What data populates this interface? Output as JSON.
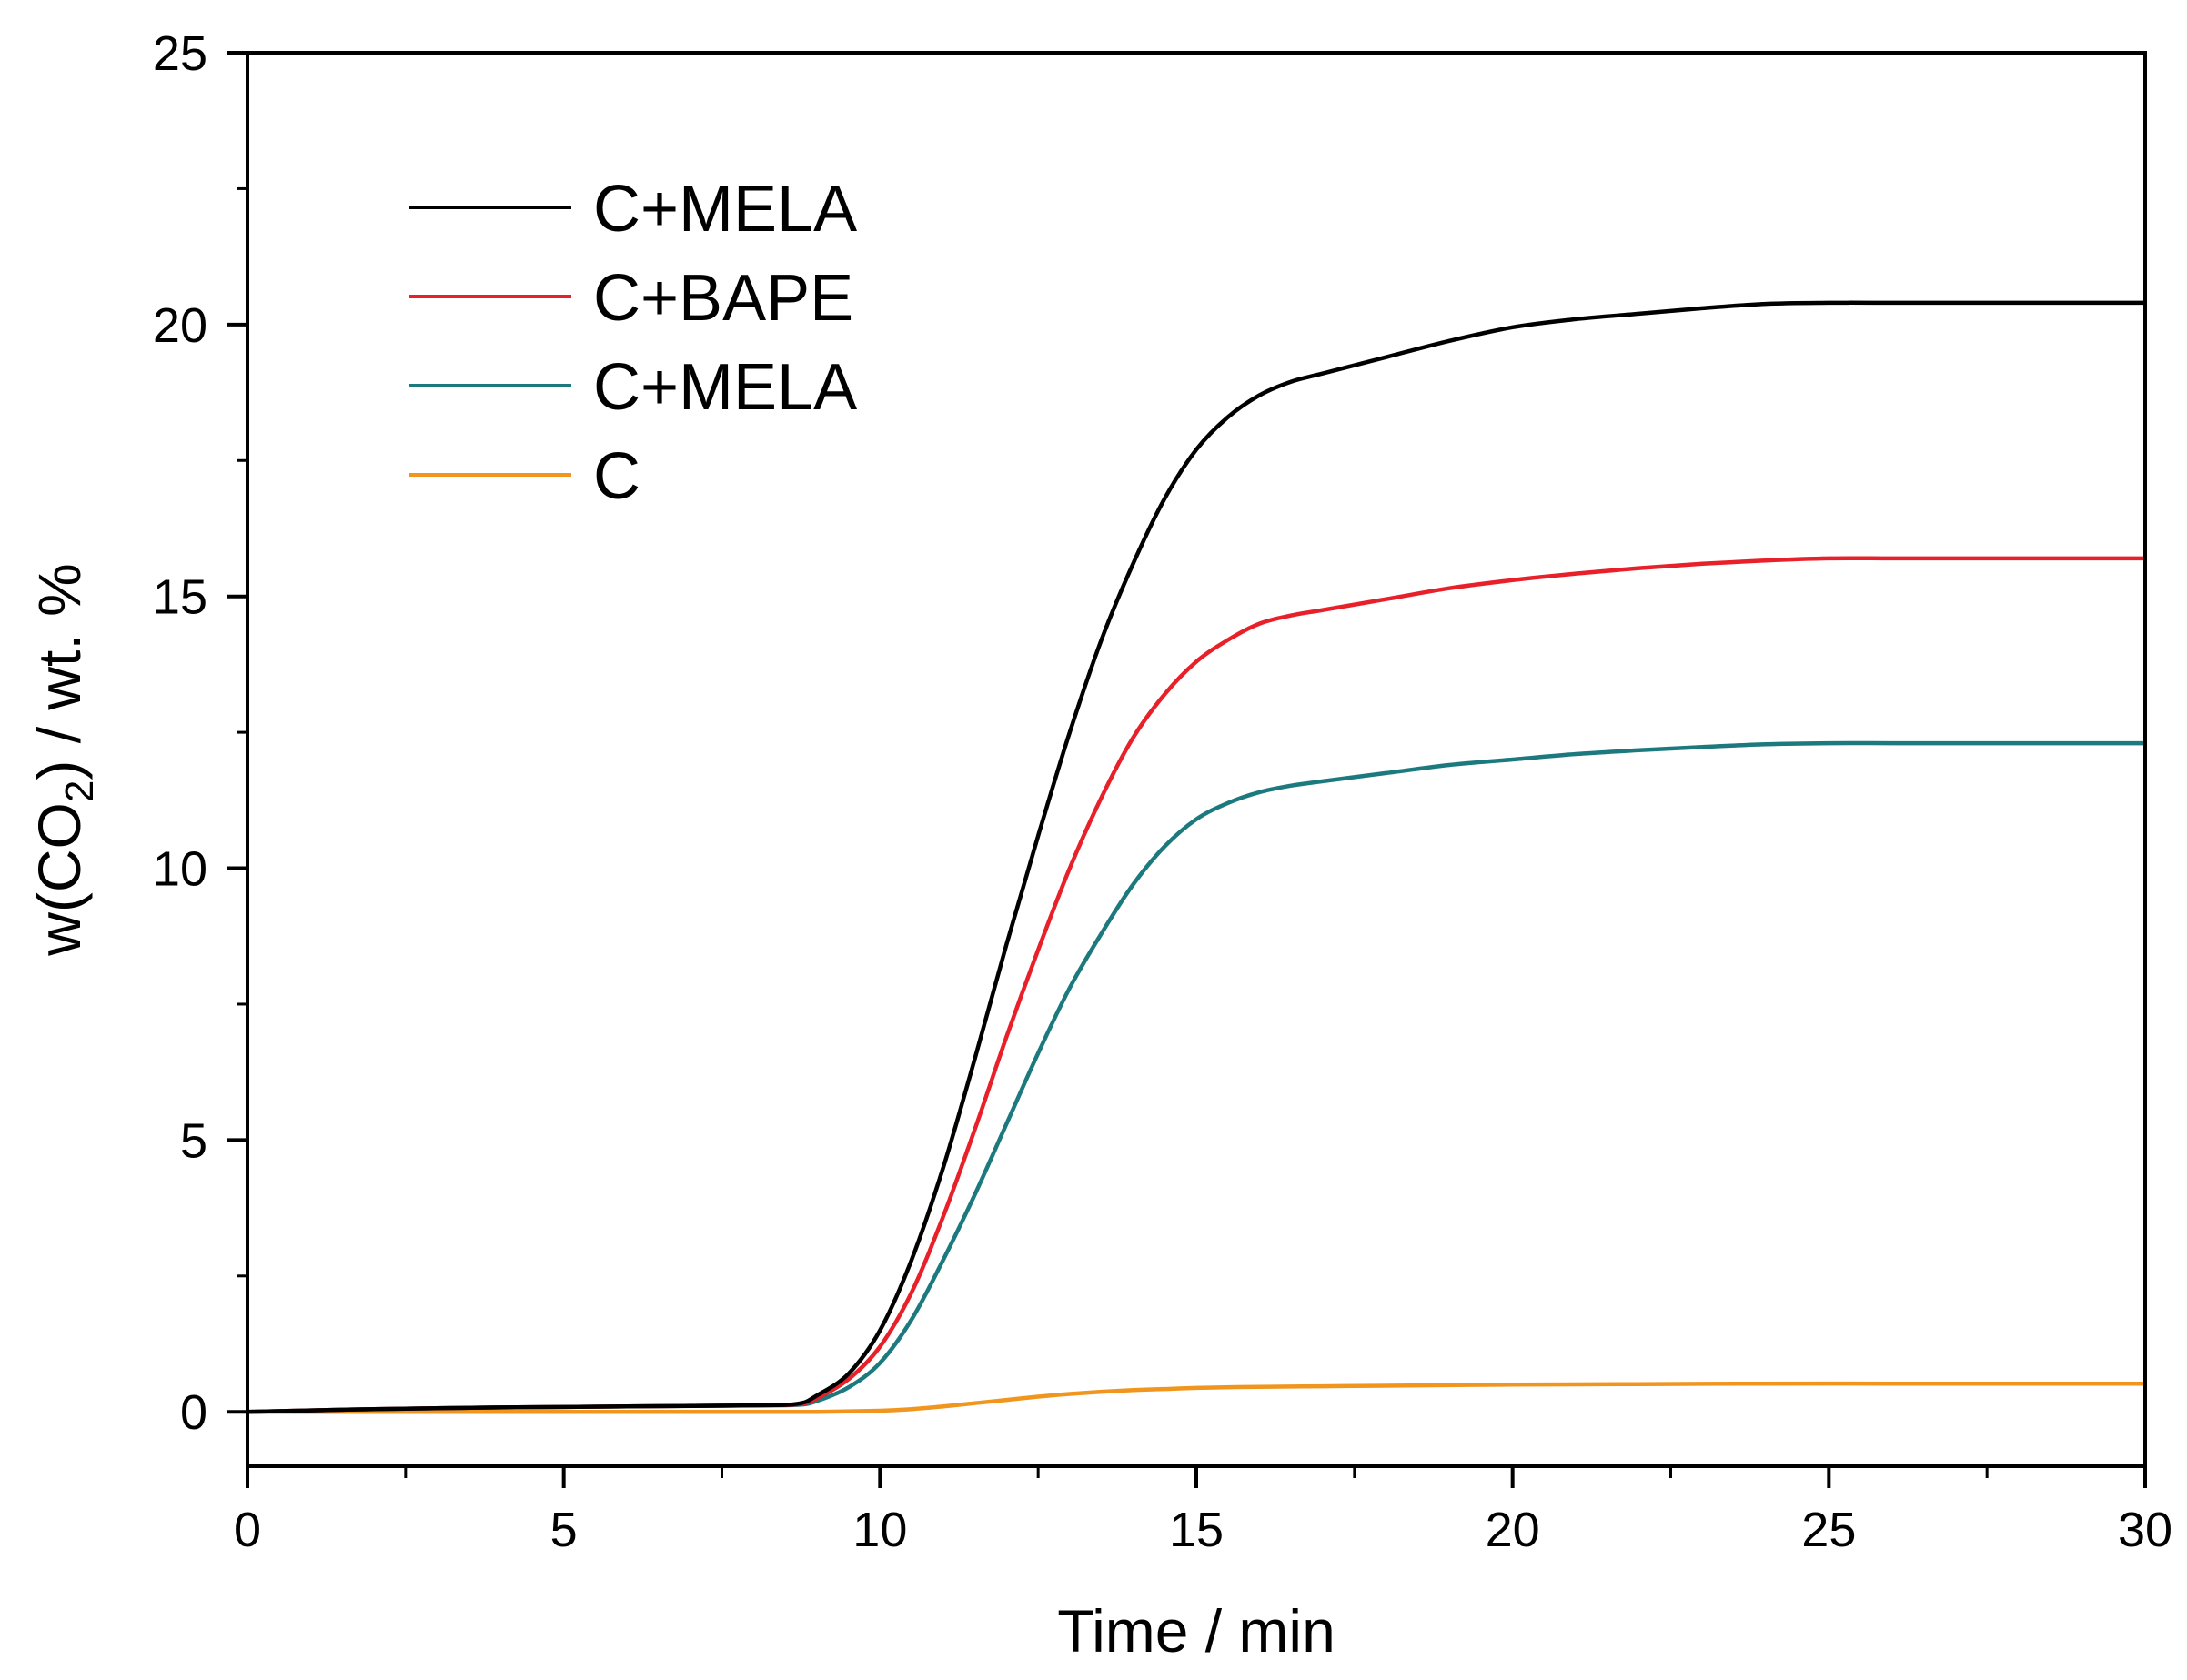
{
  "chart_data": {
    "type": "line",
    "title": "",
    "xlabel": "Time / min",
    "ylabel": {
      "prefix": "w(CO",
      "subscript": "2",
      "suffix": ") / wt. %"
    },
    "xlim": [
      0,
      30
    ],
    "ylim": [
      -1,
      25
    ],
    "xticks": [
      0,
      5,
      10,
      15,
      20,
      25,
      30
    ],
    "yticks": [
      0,
      5,
      10,
      15,
      20,
      25
    ],
    "grid": false,
    "legend_position": "top-left",
    "series": [
      {
        "name": "C+MELA",
        "color": "#000000",
        "x": [
          0,
          2,
          4,
          6,
          8,
          8.7,
          9,
          9.5,
          10,
          10.5,
          11,
          11.5,
          12,
          12.5,
          13,
          13.5,
          14,
          14.5,
          15,
          15.5,
          16,
          16.5,
          17,
          18,
          19,
          20,
          21,
          22,
          23,
          24,
          25,
          26,
          27,
          28,
          29,
          30
        ],
        "y": [
          0,
          0.05,
          0.08,
          0.1,
          0.12,
          0.15,
          0.3,
          0.7,
          1.5,
          2.8,
          4.5,
          6.5,
          8.6,
          10.6,
          12.5,
          14.2,
          15.6,
          16.8,
          17.7,
          18.3,
          18.7,
          18.95,
          19.1,
          19.4,
          19.7,
          19.95,
          20.1,
          20.2,
          20.3,
          20.38,
          20.4,
          20.4,
          20.4,
          20.4,
          20.4,
          20.4
        ]
      },
      {
        "name": "C+BAPE",
        "color": "#e8202a",
        "x": [
          0,
          2,
          4,
          6,
          8,
          8.7,
          9,
          9.5,
          10,
          10.5,
          11,
          11.5,
          12,
          12.5,
          13,
          13.5,
          14,
          14.5,
          15,
          15.5,
          16,
          16.5,
          17,
          18,
          19,
          20,
          21,
          22,
          23,
          24,
          25,
          26,
          27,
          28,
          29,
          30
        ],
        "y": [
          0,
          0.05,
          0.08,
          0.1,
          0.12,
          0.14,
          0.25,
          0.6,
          1.2,
          2.2,
          3.6,
          5.2,
          6.9,
          8.5,
          10.0,
          11.3,
          12.4,
          13.2,
          13.8,
          14.2,
          14.5,
          14.65,
          14.75,
          14.95,
          15.15,
          15.3,
          15.42,
          15.52,
          15.6,
          15.66,
          15.7,
          15.7,
          15.7,
          15.7,
          15.7,
          15.7
        ]
      },
      {
        "name": "C+MELA",
        "color": "#1c7a7e",
        "x": [
          0,
          2,
          4,
          6,
          8,
          8.7,
          9,
          9.5,
          10,
          10.5,
          11,
          11.5,
          12,
          12.5,
          13,
          13.5,
          14,
          14.5,
          15,
          15.5,
          16,
          16.5,
          17,
          18,
          19,
          20,
          21,
          22,
          23,
          24,
          25,
          26,
          27,
          28,
          29,
          30
        ],
        "y": [
          0,
          0.05,
          0.08,
          0.1,
          0.12,
          0.13,
          0.2,
          0.45,
          0.9,
          1.7,
          2.8,
          4.0,
          5.3,
          6.6,
          7.8,
          8.8,
          9.7,
          10.4,
          10.9,
          11.2,
          11.4,
          11.52,
          11.6,
          11.75,
          11.9,
          12.0,
          12.1,
          12.17,
          12.23,
          12.28,
          12.3,
          12.3,
          12.3,
          12.3,
          12.3,
          12.3
        ]
      },
      {
        "name": "C",
        "color": "#f0961e",
        "x": [
          0,
          2,
          4,
          6,
          8,
          9,
          10,
          10.5,
          11,
          11.5,
          12,
          12.5,
          13,
          13.5,
          14,
          14.5,
          15,
          16,
          17,
          18,
          20,
          22,
          24,
          26,
          28,
          30
        ],
        "y": [
          0,
          0,
          0,
          0,
          0,
          0,
          0.02,
          0.05,
          0.1,
          0.16,
          0.22,
          0.28,
          0.33,
          0.37,
          0.4,
          0.42,
          0.44,
          0.46,
          0.47,
          0.48,
          0.5,
          0.51,
          0.52,
          0.52,
          0.52,
          0.52
        ]
      }
    ]
  }
}
